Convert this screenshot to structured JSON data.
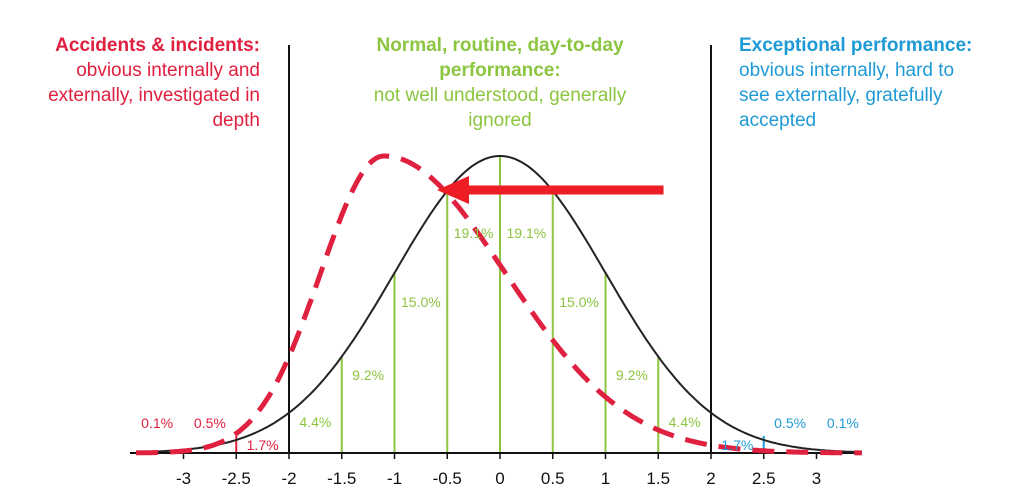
{
  "headers": {
    "left": {
      "title": "Accidents & incidents:",
      "lines": [
        "obvious internally and",
        "externally, investigated in",
        "depth"
      ]
    },
    "middle": {
      "title_lines": [
        "Normal, routine, day-to-day",
        "performance:"
      ],
      "lines": [
        "not well understood, generally",
        "ignored"
      ]
    },
    "right": {
      "title": "Exceptional performance:",
      "lines": [
        "obvious internally, hard to",
        "see externally, gratefully",
        "accepted"
      ]
    }
  },
  "colors": {
    "accident": "#e0203f",
    "normal": "#8cc540",
    "exceptional": "#1e9ad6",
    "curve": "#222222",
    "arrow": "#ee1c25"
  },
  "chart_data": {
    "type": "area",
    "x_ticks": [
      -3,
      -2.5,
      -2,
      -1.5,
      -1,
      -0.5,
      0,
      0.5,
      1,
      1.5,
      2,
      2.5,
      3
    ],
    "x_tick_labels": [
      "-3",
      "-2.5",
      "-2",
      "-1.5",
      "-1",
      "-0.5",
      "0",
      "0.5",
      "1",
      "1.5",
      "2",
      "2.5",
      "3"
    ],
    "xlim": [
      -3.4,
      3.4
    ],
    "dividers": [
      -2,
      2
    ],
    "bands": [
      {
        "label": "0.1%",
        "group": "left",
        "from": -3.5,
        "to": -3
      },
      {
        "label": "0.5%",
        "group": "left",
        "from": -3,
        "to": -2.5
      },
      {
        "label": "1.7%",
        "group": "left",
        "from": -2.5,
        "to": -2
      },
      {
        "label": "4.4%",
        "group": "middle",
        "from": -2,
        "to": -1.5
      },
      {
        "label": "9.2%",
        "group": "middle",
        "from": -1.5,
        "to": -1
      },
      {
        "label": "15.0%",
        "group": "middle",
        "from": -1,
        "to": -0.5
      },
      {
        "label": "19.1%",
        "group": "middle",
        "from": -0.5,
        "to": 0
      },
      {
        "label": "19.1%",
        "group": "middle",
        "from": 0,
        "to": 0.5
      },
      {
        "label": "15.0%",
        "group": "middle",
        "from": 0.5,
        "to": 1
      },
      {
        "label": "9.2%",
        "group": "middle",
        "from": 1,
        "to": 1.5
      },
      {
        "label": "4.4%",
        "group": "middle",
        "from": 1.5,
        "to": 2
      },
      {
        "label": "1.7%",
        "group": "right",
        "from": 2,
        "to": 2.5
      },
      {
        "label": "0.5%",
        "group": "right",
        "from": 2.5,
        "to": 3
      },
      {
        "label": "0.1%",
        "group": "right",
        "from": 3,
        "to": 3.5
      }
    ],
    "series": [
      {
        "style": "solid",
        "kind": "normal distribution",
        "mean": 0,
        "sd": 1
      },
      {
        "style": "dashed",
        "kind": "skewed distribution",
        "mode": -1.1,
        "sd_left": 0.6,
        "sd_right": 1.15,
        "peak_ratio": 1.0
      }
    ],
    "annotations": [
      {
        "type": "arrow",
        "from_x": 1.55,
        "to_x": -0.55,
        "direction": "left"
      }
    ]
  }
}
